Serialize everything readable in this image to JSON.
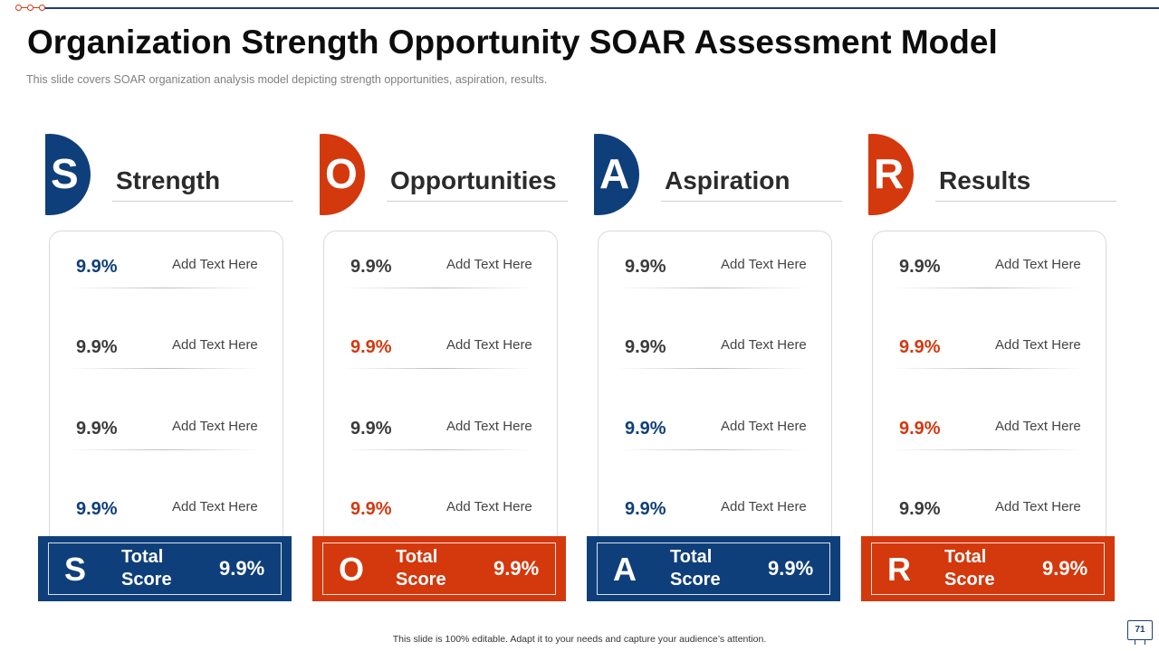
{
  "slide": {
    "title": "Organization Strength Opportunity SOAR Assessment Model",
    "subtitle": "This slide covers SOAR organization analysis model depicting strength opportunities, aspiration, results.",
    "footer": "This slide is 100% editable. Adapt it to your needs and capture your audience’s attention.",
    "page_number": "71"
  },
  "colors": {
    "blue": "#0f3f7a",
    "red": "#d4380d",
    "text": "#3b3b3b"
  },
  "columns": [
    {
      "letter": "S",
      "title": "Strength",
      "color": "#0f3f7a",
      "rows": [
        {
          "value": "9.9%",
          "text": "Add Text Here",
          "accent": "blue"
        },
        {
          "value": "9.9%",
          "text": "Add Text Here",
          "accent": "none"
        },
        {
          "value": "9.9%",
          "text": "Add Text Here",
          "accent": "none"
        },
        {
          "value": "9.9%",
          "text": "Add Text Here",
          "accent": "blue"
        }
      ],
      "total_label": "Total Score",
      "total_value": "9.9%"
    },
    {
      "letter": "O",
      "title": "Opportunities",
      "color": "#d4380d",
      "rows": [
        {
          "value": "9.9%",
          "text": "Add Text Here",
          "accent": "none"
        },
        {
          "value": "9.9%",
          "text": "Add Text Here",
          "accent": "red"
        },
        {
          "value": "9.9%",
          "text": "Add Text Here",
          "accent": "none"
        },
        {
          "value": "9.9%",
          "text": "Add Text Here",
          "accent": "red"
        }
      ],
      "total_label": "Total Score",
      "total_value": "9.9%"
    },
    {
      "letter": "A",
      "title": "Aspiration",
      "color": "#0f3f7a",
      "rows": [
        {
          "value": "9.9%",
          "text": "Add Text Here",
          "accent": "none"
        },
        {
          "value": "9.9%",
          "text": "Add Text Here",
          "accent": "none"
        },
        {
          "value": "9.9%",
          "text": "Add Text Here",
          "accent": "blue"
        },
        {
          "value": "9.9%",
          "text": "Add Text Here",
          "accent": "blue"
        }
      ],
      "total_label": "Total Score",
      "total_value": "9.9%"
    },
    {
      "letter": "R",
      "title": "Results",
      "color": "#d4380d",
      "rows": [
        {
          "value": "9.9%",
          "text": "Add Text Here",
          "accent": "none"
        },
        {
          "value": "9.9%",
          "text": "Add Text Here",
          "accent": "red"
        },
        {
          "value": "9.9%",
          "text": "Add Text Here",
          "accent": "red"
        },
        {
          "value": "9.9%",
          "text": "Add Text Here",
          "accent": "none"
        }
      ],
      "total_label": "Total Score",
      "total_value": "9.9%"
    }
  ]
}
